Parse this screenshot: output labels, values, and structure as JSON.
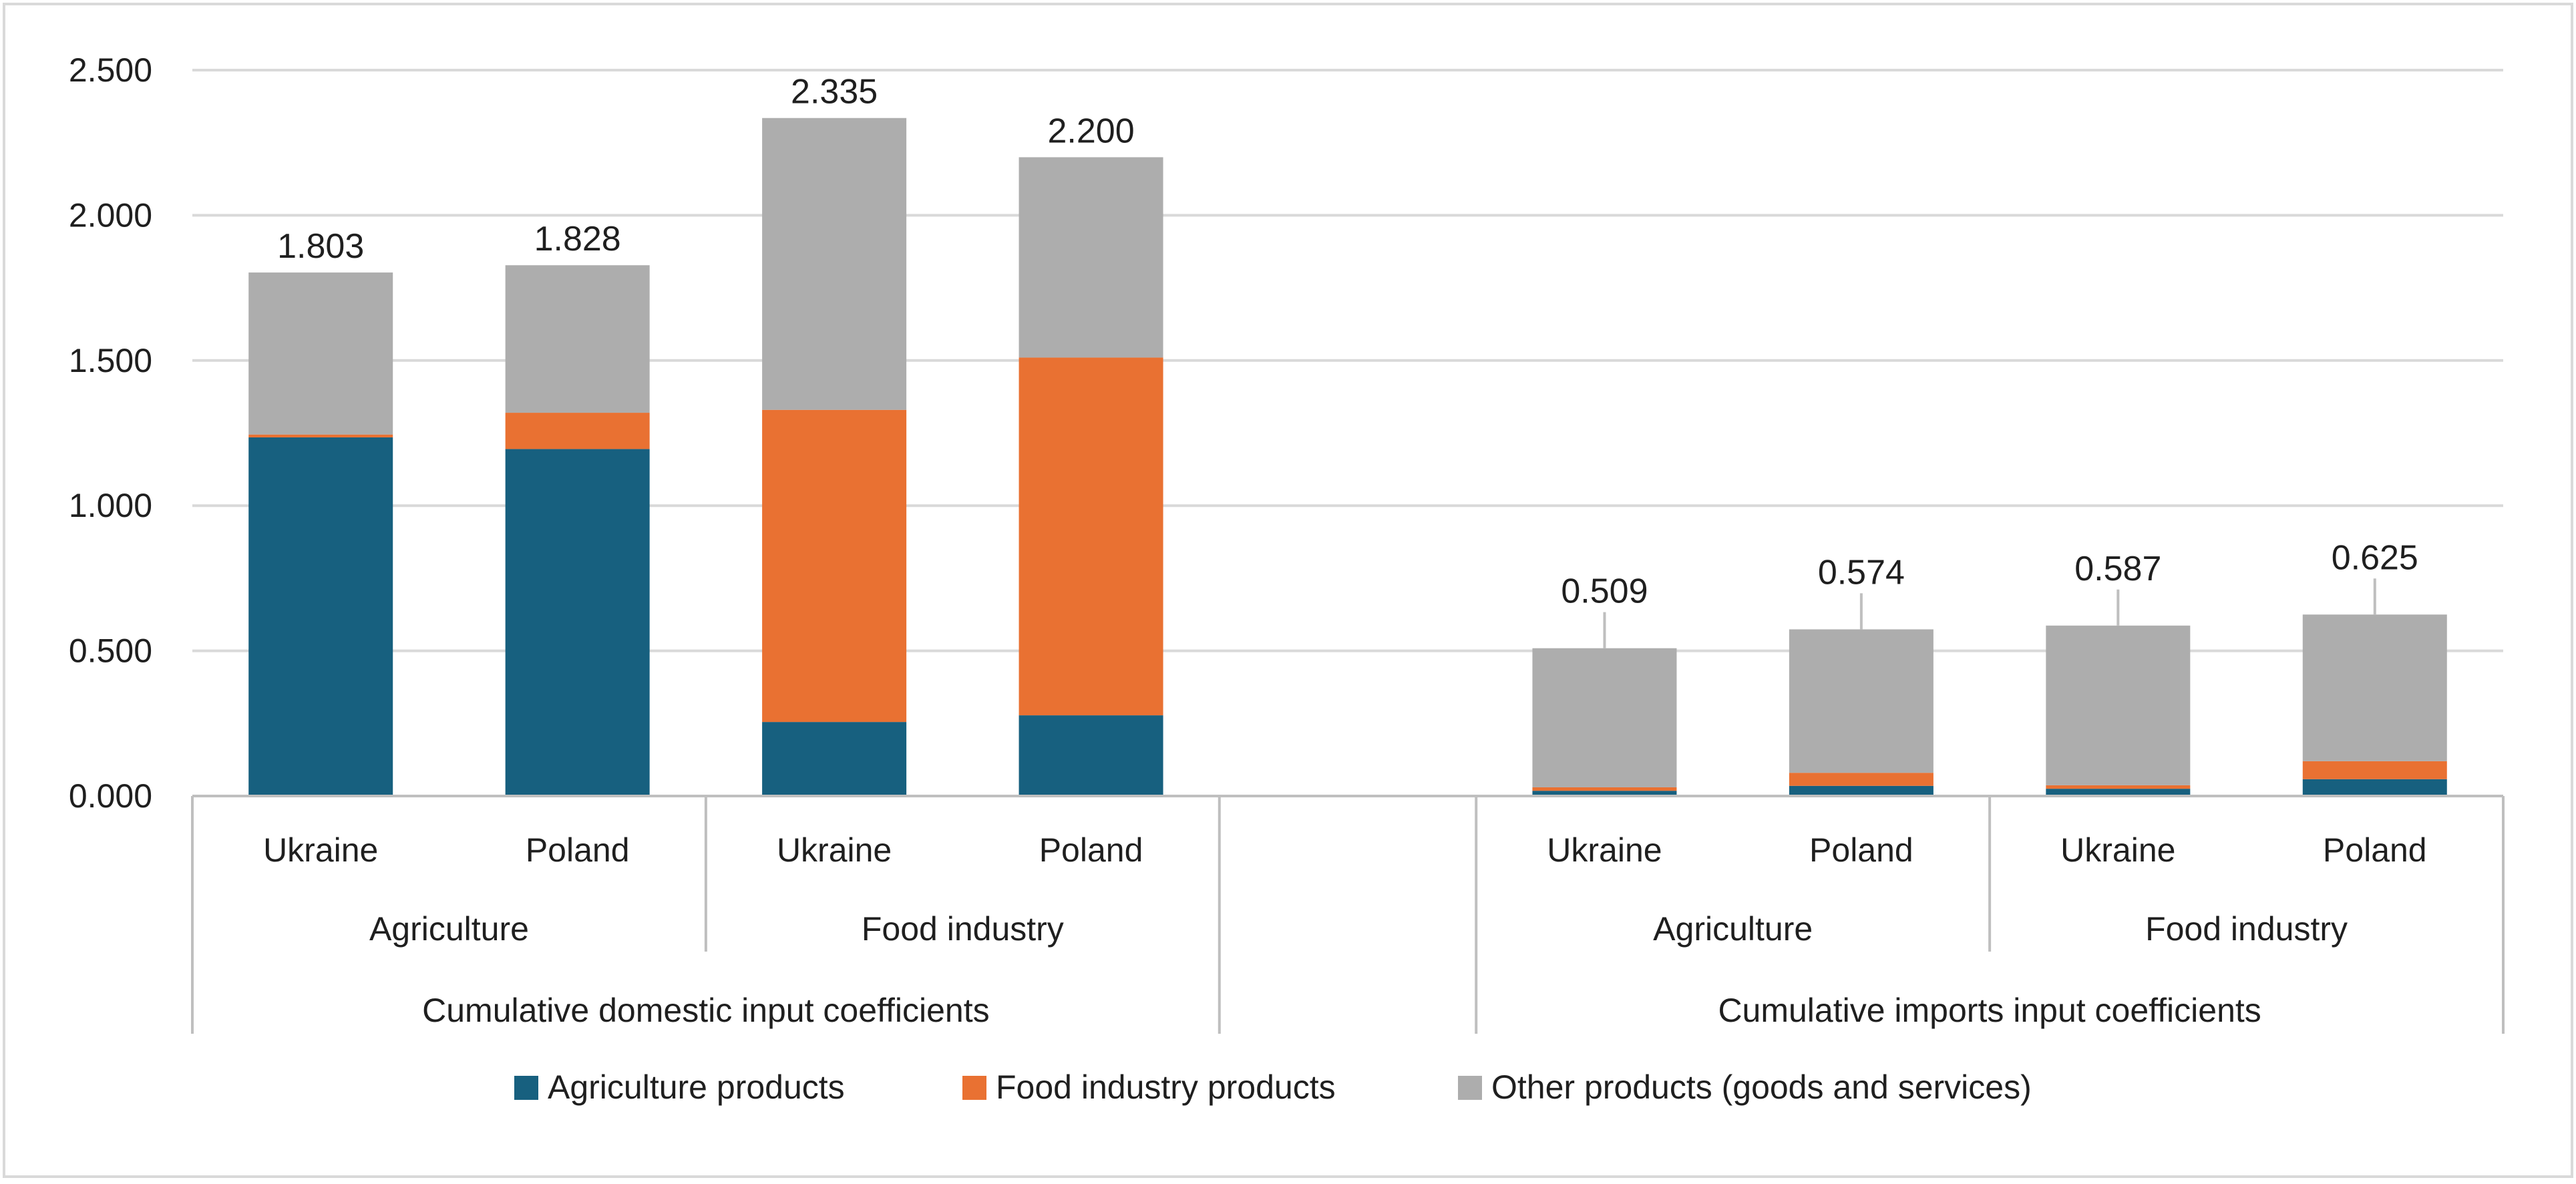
{
  "chart_data": {
    "type": "bar",
    "stacked": true,
    "ylim": [
      0,
      2.5
    ],
    "yticks": [
      "0.000",
      "0.500",
      "1.000",
      "1.500",
      "2.000",
      "2.500"
    ],
    "ytick_values": [
      0,
      0.5,
      1.0,
      1.5,
      2.0,
      2.5
    ],
    "grid": true,
    "legend_position": "bottom",
    "colors": {
      "agri": "#17607f",
      "food": "#e97132",
      "other": "#adadad",
      "grid": "#d9d9d9",
      "axis": "#bfbfbf",
      "border": "#d9d9d9"
    },
    "legend": [
      {
        "key": "agri",
        "label": "Agriculture products"
      },
      {
        "key": "food",
        "label": "Food industry products"
      },
      {
        "key": "other",
        "label": "Other products (goods and services)"
      }
    ],
    "bars": [
      {
        "slot": 0,
        "country": "Ukraine",
        "agri": 1.235,
        "food": 0.01,
        "other": 0.558,
        "total_label": "1.803"
      },
      {
        "slot": 1,
        "country": "Poland",
        "agri": 1.195,
        "food": 0.125,
        "other": 0.508,
        "total_label": "1.828"
      },
      {
        "slot": 2,
        "country": "Ukraine",
        "agri": 0.255,
        "food": 1.075,
        "other": 1.005,
        "total_label": "2.335"
      },
      {
        "slot": 3,
        "country": "Poland",
        "agri": 0.278,
        "food": 1.232,
        "other": 0.69,
        "total_label": "2.200"
      },
      {
        "slot": 5,
        "country": "Ukraine",
        "agri": 0.018,
        "food": 0.012,
        "other": 0.479,
        "total_label": "0.509"
      },
      {
        "slot": 6,
        "country": "Poland",
        "agri": 0.035,
        "food": 0.045,
        "other": 0.494,
        "total_label": "0.574"
      },
      {
        "slot": 7,
        "country": "Ukraine",
        "agri": 0.025,
        "food": 0.012,
        "other": 0.55,
        "total_label": "0.587"
      },
      {
        "slot": 8,
        "country": "Poland",
        "agri": 0.058,
        "food": 0.062,
        "other": 0.505,
        "total_label": "0.625"
      }
    ],
    "sectors": [
      {
        "label": "Agriculture",
        "first_slot": 0,
        "last_slot": 1
      },
      {
        "label": "Food industry",
        "first_slot": 2,
        "last_slot": 3
      },
      {
        "label": "Agriculture",
        "first_slot": 5,
        "last_slot": 6
      },
      {
        "label": "Food industry",
        "first_slot": 7,
        "last_slot": 8
      }
    ],
    "groups": [
      {
        "label": "Cumulative domestic input coefficients",
        "first_slot": 0,
        "last_slot": 3
      },
      {
        "label": "Cumulative imports input coefficients",
        "first_slot": 5,
        "last_slot": 8
      }
    ],
    "slot_count": 9
  }
}
